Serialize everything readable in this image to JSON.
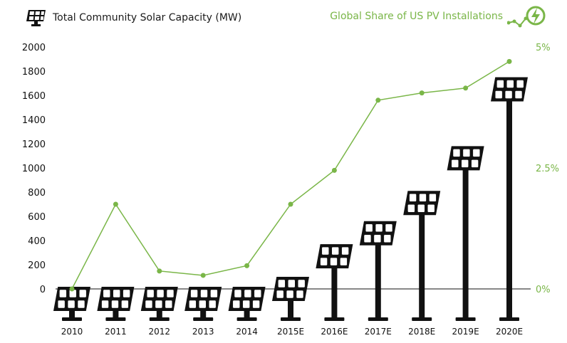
{
  "legend": {
    "left_label": "Total Community Solar Capacity (MW)",
    "left_icon": "solar-panel-icon",
    "right_label": "Global Share of US PV Installations",
    "right_icon": "lightning-bolt-icon"
  },
  "colors": {
    "bars": "#111111",
    "line": "#7ab648",
    "axis": "#111111",
    "right_axis_text": "#7ab648"
  },
  "chart_data": {
    "type": "bar",
    "categories": [
      "2010",
      "2011",
      "2012",
      "2013",
      "2014",
      "2015E",
      "2016E",
      "2017E",
      "2018E",
      "2019E",
      "2020E"
    ],
    "series": [
      {
        "name": "Total Community Solar Capacity (MW)",
        "type": "bar",
        "axis": "left",
        "values": [
          -100,
          -100,
          -100,
          -100,
          -100,
          0,
          270,
          460,
          710,
          1080,
          1650
        ]
      },
      {
        "name": "Global Share of US PV Installations",
        "type": "line",
        "axis": "right",
        "unit": "%",
        "values": [
          0.0,
          1.75,
          0.37,
          0.28,
          0.48,
          1.75,
          2.45,
          3.9,
          4.05,
          4.15,
          4.7
        ]
      }
    ],
    "y_left": {
      "ticks": [
        0,
        200,
        400,
        600,
        800,
        1000,
        1200,
        1400,
        1600,
        1800,
        2000
      ],
      "min": 0,
      "max": 2000
    },
    "y_right": {
      "ticks": [
        "0%",
        "2.5%",
        "5%"
      ],
      "tick_values": [
        0,
        2.5,
        5
      ],
      "min": 0,
      "max": 5
    },
    "grid": false,
    "legend_position": "top"
  }
}
